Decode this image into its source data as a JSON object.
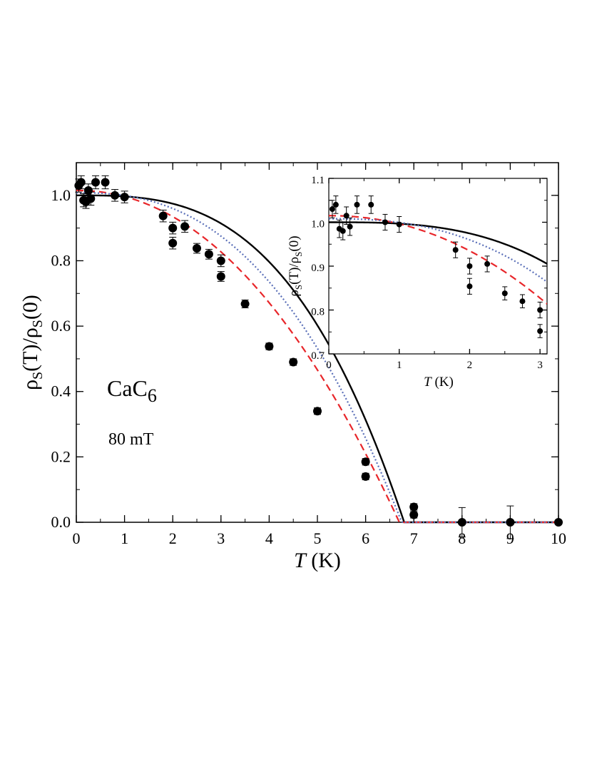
{
  "chart_data": [
    {
      "id": "main",
      "type": "scatter",
      "xlabel_var": "T",
      "xlabel_unit": "(K)",
      "ylabel": "ρS(T)/ρS(0)",
      "ylabel_parts": {
        "rho1": "ρ",
        "sub1": "S",
        "mid": "(T)/",
        "rho2": "ρ",
        "sub2": "S",
        "end": "(0)"
      },
      "xlim": [
        0,
        10
      ],
      "ylim": [
        0,
        1.1
      ],
      "xticks": [
        "0",
        "1",
        "2",
        "3",
        "4",
        "5",
        "6",
        "7",
        "8",
        "9",
        "10"
      ],
      "yticks": [
        "0.0",
        "0.2",
        "0.4",
        "0.6",
        "0.8",
        "1.0"
      ],
      "annotations": {
        "compound": "CaC",
        "compound_sub": "6",
        "field": "80 mT"
      },
      "series": [
        {
          "name": "data",
          "points": [
            {
              "x": 0.05,
              "y": 1.03,
              "err": 0.02
            },
            {
              "x": 0.1,
              "y": 1.04,
              "err": 0.02
            },
            {
              "x": 0.15,
              "y": 0.985,
              "err": 0.02
            },
            {
              "x": 0.2,
              "y": 0.98,
              "err": 0.02
            },
            {
              "x": 0.25,
              "y": 1.015,
              "err": 0.02
            },
            {
              "x": 0.3,
              "y": 0.99,
              "err": 0.02
            },
            {
              "x": 0.4,
              "y": 1.04,
              "err": 0.02
            },
            {
              "x": 0.6,
              "y": 1.04,
              "err": 0.02
            },
            {
              "x": 0.8,
              "y": 1.0,
              "err": 0.018
            },
            {
              "x": 1.0,
              "y": 0.995,
              "err": 0.018
            },
            {
              "x": 1.8,
              "y": 0.937,
              "err": 0.018
            },
            {
              "x": 2.0,
              "y": 0.9,
              "err": 0.018
            },
            {
              "x": 2.0,
              "y": 0.854,
              "err": 0.018
            },
            {
              "x": 2.25,
              "y": 0.905,
              "err": 0.018
            },
            {
              "x": 2.5,
              "y": 0.838,
              "err": 0.015
            },
            {
              "x": 2.75,
              "y": 0.82,
              "err": 0.015
            },
            {
              "x": 3.0,
              "y": 0.8,
              "err": 0.018
            },
            {
              "x": 3.0,
              "y": 0.752,
              "err": 0.015
            },
            {
              "x": 3.5,
              "y": 0.668,
              "err": 0.012
            },
            {
              "x": 4.0,
              "y": 0.538,
              "err": 0.01
            },
            {
              "x": 4.5,
              "y": 0.49,
              "err": 0.01
            },
            {
              "x": 5.0,
              "y": 0.34,
              "err": 0.01
            },
            {
              "x": 6.0,
              "y": 0.185,
              "err": 0.01
            },
            {
              "x": 6.0,
              "y": 0.14,
              "err": 0.01
            },
            {
              "x": 7.0,
              "y": 0.047,
              "err": 0.01
            },
            {
              "x": 7.0,
              "y": 0.023,
              "err": 0.01
            },
            {
              "x": 8.0,
              "y": 0.0,
              "err": 0.045
            },
            {
              "x": 9.0,
              "y": 0.0,
              "err": 0.05
            },
            {
              "x": 10.0,
              "y": 0.0,
              "err": 0.0
            }
          ]
        },
        {
          "name": "fit-solid",
          "color": "#000000",
          "style": "solid",
          "Tc": 6.8,
          "p": 3.0,
          "amp": 1.0
        },
        {
          "name": "fit-dashed",
          "color": "#e8262a",
          "style": "dashed",
          "Tc": 6.7,
          "p": 2.1,
          "amp": 1.015
        },
        {
          "name": "fit-dotted",
          "color": "#5a6fb8",
          "style": "dotted",
          "Tc": 6.75,
          "p": 2.5,
          "amp": 1.008
        }
      ]
    },
    {
      "id": "inset",
      "type": "scatter",
      "xlabel_var": "T",
      "xlabel_unit": "(K)",
      "ylabel_parts": {
        "rho1": "ρ",
        "sub1": "S",
        "mid": "(T)/",
        "rho2": "ρ",
        "sub2": "S",
        "end": "(0)"
      },
      "xlim": [
        0,
        3.1
      ],
      "ylim": [
        0.7,
        1.1
      ],
      "xticks": [
        "0",
        "1",
        "2",
        "3"
      ],
      "yticks": [
        "0.7",
        "0.8",
        "0.9",
        "1.0",
        "1.1"
      ]
    }
  ]
}
